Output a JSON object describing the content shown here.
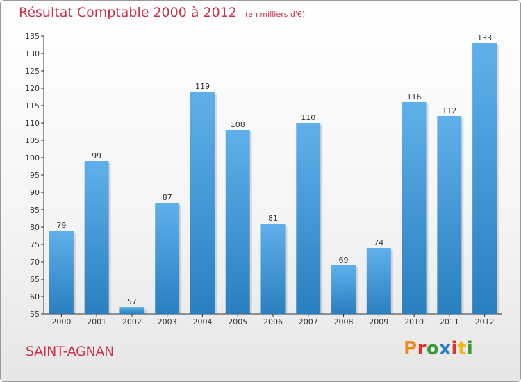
{
  "header": {
    "title": "Résultat Comptable 2000 à 2012",
    "subtitle": "(en milliers d'€)"
  },
  "footer": {
    "town": "SAINT-AGNAN",
    "logo": "Proxiti"
  },
  "colors": {
    "title": "#c8324a",
    "bar_light": "#5fb0ea",
    "bar_dark": "#2a7fc0",
    "logo_letters": [
      "#f08a1c",
      "#e0322a",
      "#3a9a3a",
      "#2a7ac8",
      "#e0322a",
      "#f0b81c",
      "#3a9a3a"
    ]
  },
  "chart_data": {
    "type": "bar",
    "title": "Résultat Comptable 2000 à 2012",
    "xlabel": "",
    "ylabel": "",
    "categories": [
      "2000",
      "2001",
      "2002",
      "2003",
      "2004",
      "2005",
      "2006",
      "2007",
      "2008",
      "2009",
      "2010",
      "2011",
      "2012"
    ],
    "values": [
      79,
      99,
      57,
      87,
      119,
      108,
      81,
      110,
      69,
      74,
      116,
      112,
      133
    ],
    "ylim": [
      55,
      135
    ],
    "yticks": [
      55,
      60,
      65,
      70,
      75,
      80,
      85,
      90,
      95,
      100,
      105,
      110,
      115,
      120,
      125,
      130,
      135
    ],
    "grid": false,
    "legend": "none"
  }
}
